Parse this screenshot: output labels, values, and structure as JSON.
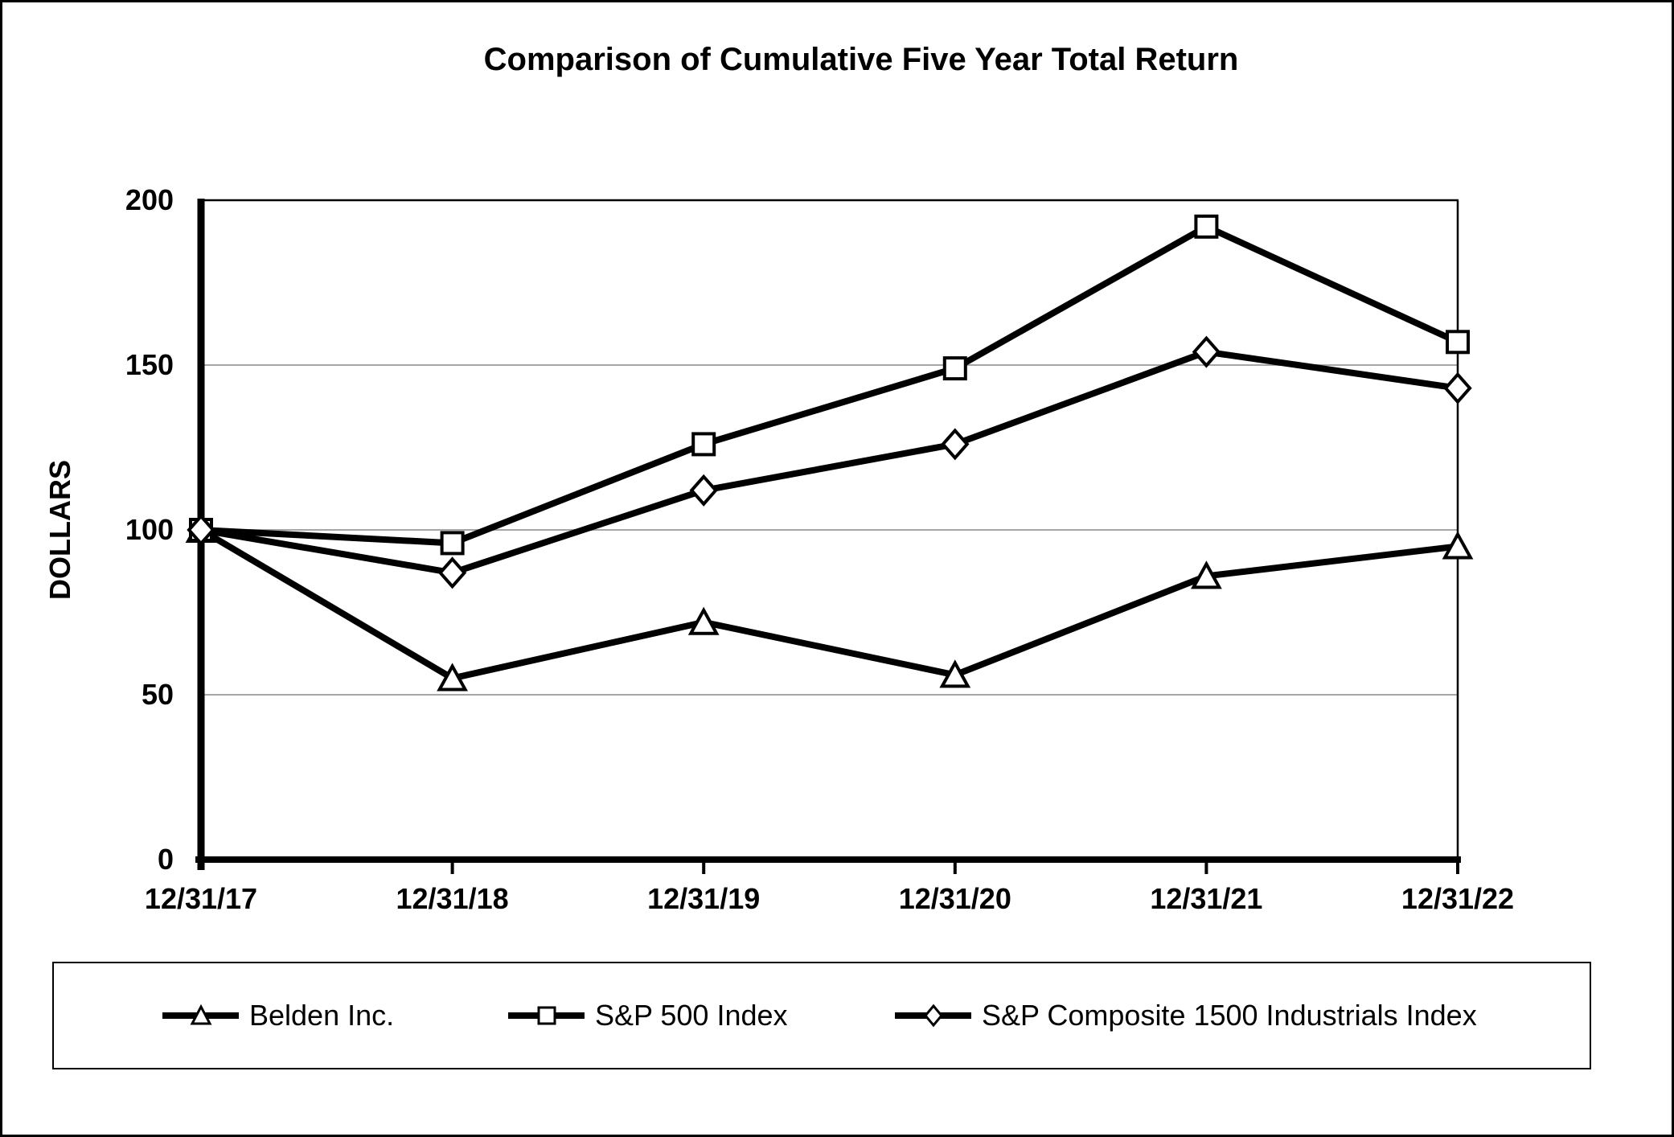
{
  "page": {
    "background": "#ffffff",
    "border_color": "#000000"
  },
  "chart_data": {
    "type": "line",
    "title": "Comparison of Cumulative Five Year Total Return",
    "xlabel": "",
    "ylabel": "DOLLARS",
    "categories": [
      "12/31/17",
      "12/31/18",
      "12/31/19",
      "12/31/20",
      "12/31/21",
      "12/31/22"
    ],
    "series": [
      {
        "name": "Belden Inc.",
        "marker": "triangle",
        "values": [
          100,
          55,
          72,
          56,
          86,
          95
        ]
      },
      {
        "name": "S&P 500 Index",
        "marker": "square",
        "values": [
          100,
          96,
          126,
          149,
          192,
          157
        ]
      },
      {
        "name": "S&P Composite 1500 Industrials Index",
        "marker": "diamond",
        "values": [
          100,
          87,
          112,
          126,
          154,
          143
        ]
      }
    ],
    "ylim": [
      0,
      200
    ],
    "yticks": [
      0,
      50,
      100,
      150,
      200
    ],
    "grid": "horizontal",
    "legend_position": "bottom",
    "colors": {
      "line": "#000000",
      "gridline": "#a6a6a6",
      "axis": "#000000",
      "marker_fill": "#ffffff",
      "text": "#000000"
    }
  }
}
